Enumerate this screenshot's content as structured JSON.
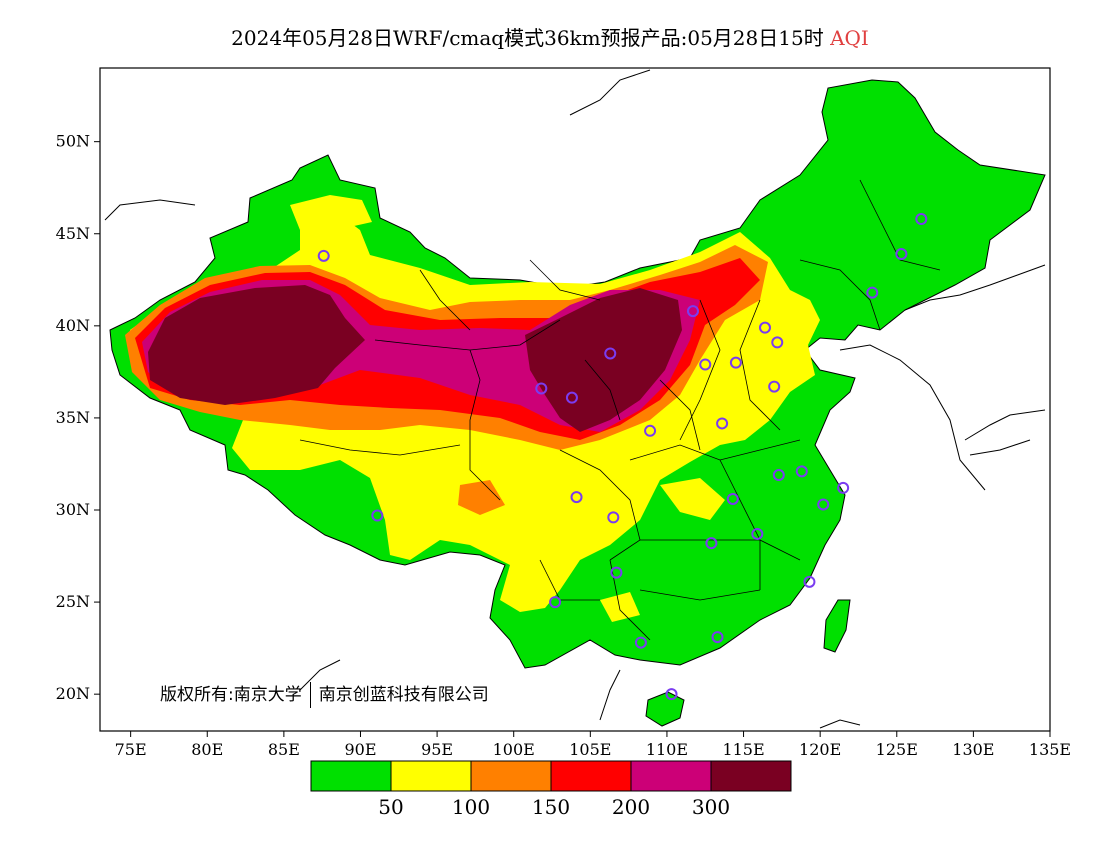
{
  "title": {
    "main": "2024年05月28日WRF/cmaq模式36km预报产品:05月28日15时",
    "pollutant": "AQI"
  },
  "axes": {
    "x_ticks": [
      "75E",
      "80E",
      "85E",
      "90E",
      "95E",
      "100E",
      "105E",
      "110E",
      "115E",
      "120E",
      "125E",
      "130E",
      "135E"
    ],
    "y_ticks": [
      "50N",
      "45N",
      "40N",
      "35N",
      "30N",
      "25N",
      "20N"
    ],
    "lon_range": [
      73,
      135
    ],
    "lat_range": [
      18,
      54
    ]
  },
  "legend": {
    "thresholds": [
      "50",
      "100",
      "150",
      "200",
      "300"
    ],
    "colors": [
      "#00e000",
      "#ffff00",
      "#ff8000",
      "#ff0000",
      "#cc0077",
      "#7a0022"
    ]
  },
  "copyright": {
    "owner1": "版权所有:南京大学",
    "owner2": "南京创蓝科技有限公司"
  },
  "colors": {
    "good": "#00e000",
    "moderate": "#ffff00",
    "unhealthy_sensitive": "#ff8000",
    "unhealthy": "#ff0000",
    "very_unhealthy": "#cc0077",
    "hazardous": "#7a0022",
    "station_ring": "#7a3cf0"
  },
  "stations": [
    [
      87.6,
      43.8
    ],
    [
      91.1,
      29.7
    ],
    [
      101.8,
      36.6
    ],
    [
      103.8,
      36.1
    ],
    [
      106.3,
      38.5
    ],
    [
      111.7,
      40.8
    ],
    [
      112.5,
      37.9
    ],
    [
      114.5,
      38.0
    ],
    [
      116.4,
      39.9
    ],
    [
      117.2,
      39.1
    ],
    [
      123.4,
      41.8
    ],
    [
      125.3,
      43.9
    ],
    [
      126.6,
      45.8
    ],
    [
      117.0,
      36.7
    ],
    [
      113.6,
      34.7
    ],
    [
      108.9,
      34.3
    ],
    [
      104.1,
      30.7
    ],
    [
      106.5,
      29.6
    ],
    [
      106.7,
      26.6
    ],
    [
      102.7,
      25.0
    ],
    [
      108.3,
      22.8
    ],
    [
      113.3,
      23.1
    ],
    [
      110.3,
      20.0
    ],
    [
      112.9,
      28.2
    ],
    [
      114.3,
      30.6
    ],
    [
      115.9,
      28.7
    ],
    [
      117.3,
      31.9
    ],
    [
      118.8,
      32.1
    ],
    [
      120.2,
      30.3
    ],
    [
      121.5,
      31.2
    ],
    [
      119.3,
      26.1
    ]
  ]
}
